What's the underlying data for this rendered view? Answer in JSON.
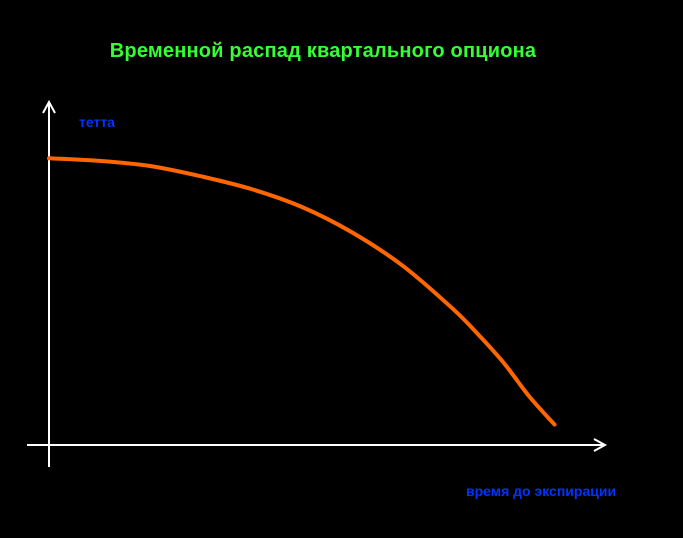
{
  "chart_data": {
    "type": "line",
    "title": "Временной распад квартального опциона",
    "xlabel": "время до экспирации",
    "ylabel": "тетта",
    "series": [
      {
        "x": [
          0,
          0.1,
          0.2,
          0.3,
          0.4,
          0.5,
          0.6,
          0.7,
          0.8,
          0.85,
          0.9,
          0.95,
          1.0
        ],
        "values": [
          1.0,
          0.99,
          0.97,
          0.93,
          0.88,
          0.81,
          0.71,
          0.58,
          0.41,
          0.31,
          0.2,
          0.07,
          -0.04
        ]
      }
    ],
    "xlim": [
      0,
      1.1
    ],
    "ylim": [
      -0.12,
      1.22
    ],
    "grid": false,
    "legend": "none",
    "colors": {
      "background": "#000000",
      "title": "#33ff33",
      "axis": "#ffffff",
      "line": "#ff6600",
      "labels": "#0033ff"
    }
  }
}
